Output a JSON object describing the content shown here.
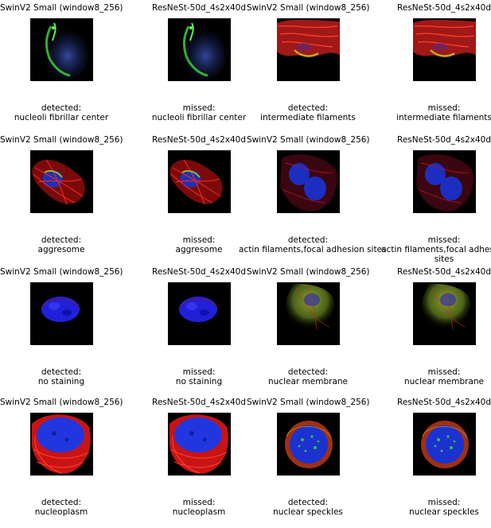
{
  "panels": [
    {
      "title": "SwinV2 Small (window8_256)",
      "caption": [
        "detected:",
        "nucleoli fibrillar center"
      ],
      "image": "cell-green-edge"
    },
    {
      "title": "ResNeSt-50d_4s2x40d",
      "caption": [
        "missed:",
        "nucleoli fibrillar center"
      ],
      "image": "cell-green-edge"
    },
    {
      "title": "SwinV2 Small (window8_256)",
      "caption": [
        "detected:",
        "intermediate filaments"
      ],
      "image": "red-filaments-top"
    },
    {
      "title": "ResNeSt-50d_4s2x40d",
      "caption": [
        "missed:",
        "intermediate filaments"
      ],
      "image": "red-filaments-top"
    },
    {
      "title": "SwinV2 Small (window8_256)",
      "caption": [
        "detected:",
        "aggresome"
      ],
      "image": "red-mesh-cell"
    },
    {
      "title": "ResNeSt-50d_4s2x40d",
      "caption": [
        "missed:",
        "aggresome"
      ],
      "image": "red-mesh-cell"
    },
    {
      "title": "SwinV2 Small (window8_256)",
      "caption": [
        "detected:",
        "actin filaments,focal adhesion sites"
      ],
      "image": "dim-blue-red-cell"
    },
    {
      "title": "ResNeSt-50d_4s2x40d",
      "caption": [
        "missed:",
        "actin filaments,focal adhesion",
        "sites"
      ],
      "image": "dim-blue-red-cell"
    },
    {
      "title": "SwinV2 Small (window8_256)",
      "caption": [
        "detected:",
        "no staining"
      ],
      "image": "blue-nucleus"
    },
    {
      "title": "ResNeSt-50d_4s2x40d",
      "caption": [
        "missed:",
        "no staining"
      ],
      "image": "blue-nucleus"
    },
    {
      "title": "SwinV2 Small (window8_256)",
      "caption": [
        "detected:",
        "nuclear membrane"
      ],
      "image": "green-diffuse-cell"
    },
    {
      "title": "ResNeSt-50d_4s2x40d",
      "caption": [
        "missed:",
        "nuclear membrane"
      ],
      "image": "green-diffuse-cell"
    },
    {
      "title": "SwinV2 Small (window8_256)",
      "caption": [
        "detected:",
        "nucleoplasm"
      ],
      "image": "big-blue-red-cell"
    },
    {
      "title": "ResNeSt-50d_4s2x40d",
      "caption": [
        "missed:",
        "nucleoplasm"
      ],
      "image": "big-blue-red-cell"
    },
    {
      "title": "SwinV2 Small (window8_256)",
      "caption": [
        "detected:",
        "nuclear speckles"
      ],
      "image": "speckled-nucleus"
    },
    {
      "title": "ResNeSt-50d_4s2x40d",
      "caption": [
        "missed:",
        "nuclear speckles"
      ],
      "image": "speckled-nucleus"
    }
  ]
}
